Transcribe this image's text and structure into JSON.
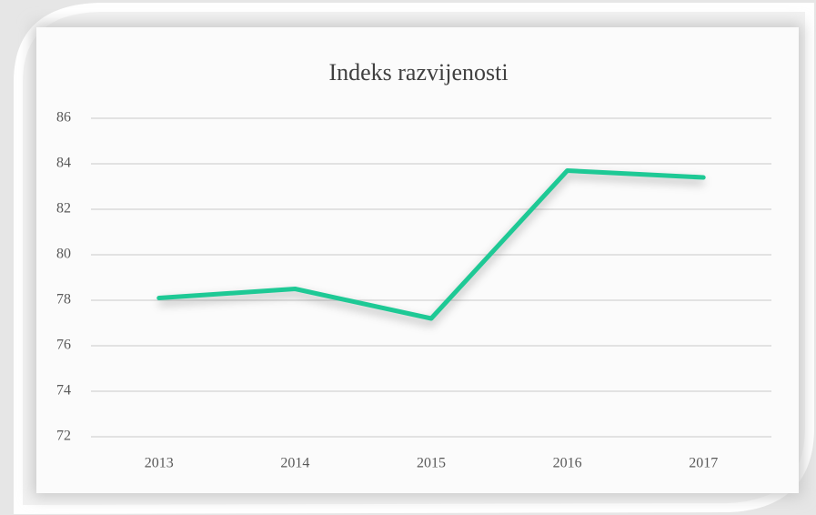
{
  "chart_data": {
    "type": "line",
    "title": "Indeks razvijenosti",
    "categories": [
      "2013",
      "2014",
      "2015",
      "2016",
      "2017"
    ],
    "series": [
      {
        "name": "Indeks razvijenosti",
        "color": "#1ec995",
        "values": [
          78.1,
          78.5,
          77.2,
          83.7,
          83.4
        ]
      }
    ],
    "ylim": [
      72,
      86
    ],
    "yticks": [
      72,
      74,
      76,
      78,
      80,
      82,
      84,
      86
    ],
    "grid": true
  }
}
